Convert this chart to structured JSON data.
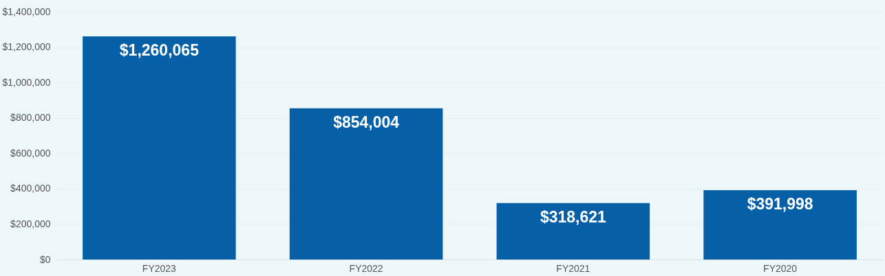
{
  "chart_data": {
    "type": "bar",
    "categories": [
      "FY2023",
      "FY2022",
      "FY2021",
      "FY2020"
    ],
    "series": [
      {
        "color": "#0560a8",
        "values": [
          1260065,
          854004,
          318621,
          391998
        ]
      }
    ],
    "value_labels": [
      "$1,260,065",
      "$854,004",
      "$318,621",
      "$391,998"
    ],
    "ylim": [
      0,
      1400000
    ],
    "yticks": [
      {
        "value": 0,
        "label": "$0"
      },
      {
        "value": 200000,
        "label": "$200,000"
      },
      {
        "value": 400000,
        "label": "$400,000"
      },
      {
        "value": 600000,
        "label": "$600,000"
      },
      {
        "value": 800000,
        "label": "$800,000"
      },
      {
        "value": 1000000,
        "label": "$1,000,000"
      },
      {
        "value": 1200000,
        "label": "$1,200,000"
      },
      {
        "value": 1400000,
        "label": "$1,400,000"
      }
    ],
    "grid": "y"
  }
}
